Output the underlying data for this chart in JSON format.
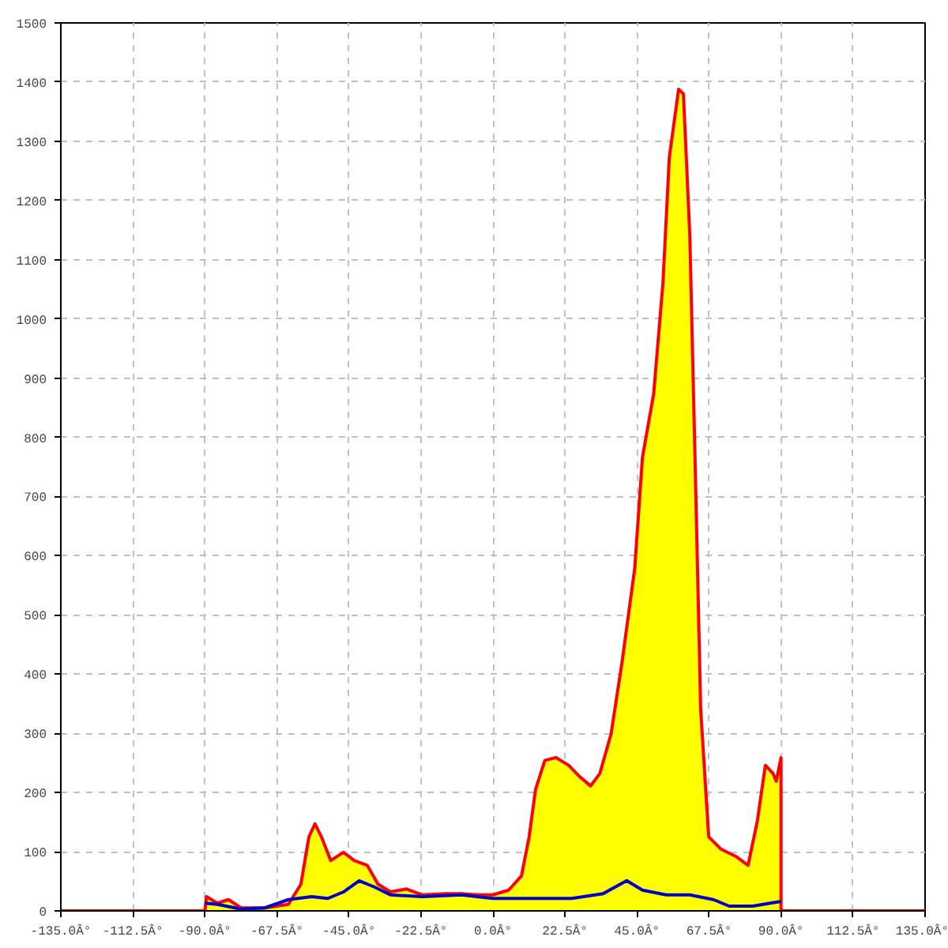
{
  "chart_data": {
    "type": "area",
    "xlim": [
      -135,
      135
    ],
    "ylim": [
      0,
      1500
    ],
    "xticks": [
      {
        "value": -135,
        "label": "-135.0Â°"
      },
      {
        "value": -112.5,
        "label": "-112.5Â°"
      },
      {
        "value": -90,
        "label": "-90.0Â°"
      },
      {
        "value": -67.5,
        "label": "-67.5Â°"
      },
      {
        "value": -45,
        "label": "-45.0Â°"
      },
      {
        "value": -22.5,
        "label": "-22.5Â°"
      },
      {
        "value": 0,
        "label": "0.0Â°"
      },
      {
        "value": 22.5,
        "label": "22.5Â°"
      },
      {
        "value": 45,
        "label": "45.0Â°"
      },
      {
        "value": 67.5,
        "label": "67.5Â°"
      },
      {
        "value": 90,
        "label": "90.0Â°"
      },
      {
        "value": 112.5,
        "label": "112.5Â°"
      },
      {
        "value": 135,
        "label": "135.0Â°"
      }
    ],
    "yticks": [
      0,
      100,
      200,
      300,
      400,
      500,
      600,
      700,
      800,
      900,
      1000,
      1100,
      1200,
      1300,
      1400,
      1500
    ],
    "grid": true,
    "series": [
      {
        "color": "#ffff00",
        "x": [
          -90,
          -89.5,
          -86.1,
          -82.6,
          -78.7,
          -71.3,
          -63.9,
          -60,
          -57.5,
          -55.6,
          -53.6,
          -50.7,
          -46.7,
          -43.3,
          -39.3,
          -35.9,
          -32,
          -27,
          -22.1,
          -14.8,
          -9.8,
          -4.9,
          0,
          4.9,
          8.9,
          11.3,
          13.3,
          16.2,
          19.7,
          23.6,
          27,
          30.5,
          33.4,
          36.9,
          40.3,
          44.3,
          46.7,
          50.2,
          53.1,
          55.1,
          58,
          59.5,
          61.5,
          63,
          64.9,
          67.4,
          71.3,
          76.2,
          79.7,
          82.6,
          85.1,
          87.5,
          88.5,
          90,
          90
        ],
        "values": [
          0,
          24,
          13,
          19,
          5,
          5,
          11,
          45,
          125,
          147,
          125,
          85,
          99,
          85,
          77,
          45,
          32,
          37,
          27,
          29,
          29,
          27,
          27,
          35,
          59,
          125,
          205,
          254,
          259,
          246,
          227,
          211,
          232,
          299,
          419,
          579,
          766,
          873,
          1060,
          1273,
          1388,
          1380,
          1140,
          793,
          339,
          125,
          104,
          91,
          77,
          152,
          246,
          232,
          219,
          259,
          0
        ]
      },
      {
        "type": "line",
        "color": "#ff0000",
        "x": [
          -135,
          -90,
          -89.5,
          -86.1,
          -82.6,
          -78.7,
          -71.3,
          -63.9,
          -60,
          -57.5,
          -55.6,
          -53.6,
          -50.7,
          -46.7,
          -43.3,
          -39.3,
          -35.9,
          -32,
          -27,
          -22.1,
          -14.8,
          -9.8,
          -4.9,
          0,
          4.9,
          8.9,
          11.3,
          13.3,
          16.2,
          19.7,
          23.6,
          27,
          30.5,
          33.4,
          36.9,
          40.3,
          44.3,
          46.7,
          50.2,
          53.1,
          55.1,
          58,
          59.5,
          61.5,
          63,
          64.9,
          67.4,
          71.3,
          76.2,
          79.7,
          82.6,
          85.1,
          87.5,
          88.5,
          90,
          90,
          135
        ],
        "values": [
          0,
          0,
          24,
          13,
          19,
          5,
          5,
          11,
          45,
          125,
          147,
          125,
          85,
          99,
          85,
          77,
          45,
          32,
          37,
          27,
          29,
          29,
          27,
          27,
          35,
          59,
          125,
          205,
          254,
          259,
          246,
          227,
          211,
          232,
          299,
          419,
          579,
          766,
          873,
          1060,
          1273,
          1388,
          1380,
          1140,
          793,
          339,
          125,
          104,
          91,
          77,
          152,
          246,
          232,
          219,
          259,
          0,
          0
        ]
      },
      {
        "type": "line",
        "color": "#0000cc",
        "x": [
          -90,
          -86.1,
          -78.7,
          -71.3,
          -63.9,
          -56.6,
          -51.6,
          -46.7,
          -41.8,
          -36.9,
          -32,
          -22.1,
          -9.8,
          0,
          9.8,
          24.6,
          34.4,
          41.8,
          46.7,
          54.1,
          61.5,
          68.9,
          73.8,
          81.1,
          90
        ],
        "values": [
          13,
          11,
          3,
          5,
          19,
          24,
          21,
          32,
          51,
          40,
          27,
          24,
          27,
          21,
          21,
          21,
          29,
          51,
          35,
          27,
          27,
          19,
          8,
          8,
          16
        ]
      }
    ]
  }
}
